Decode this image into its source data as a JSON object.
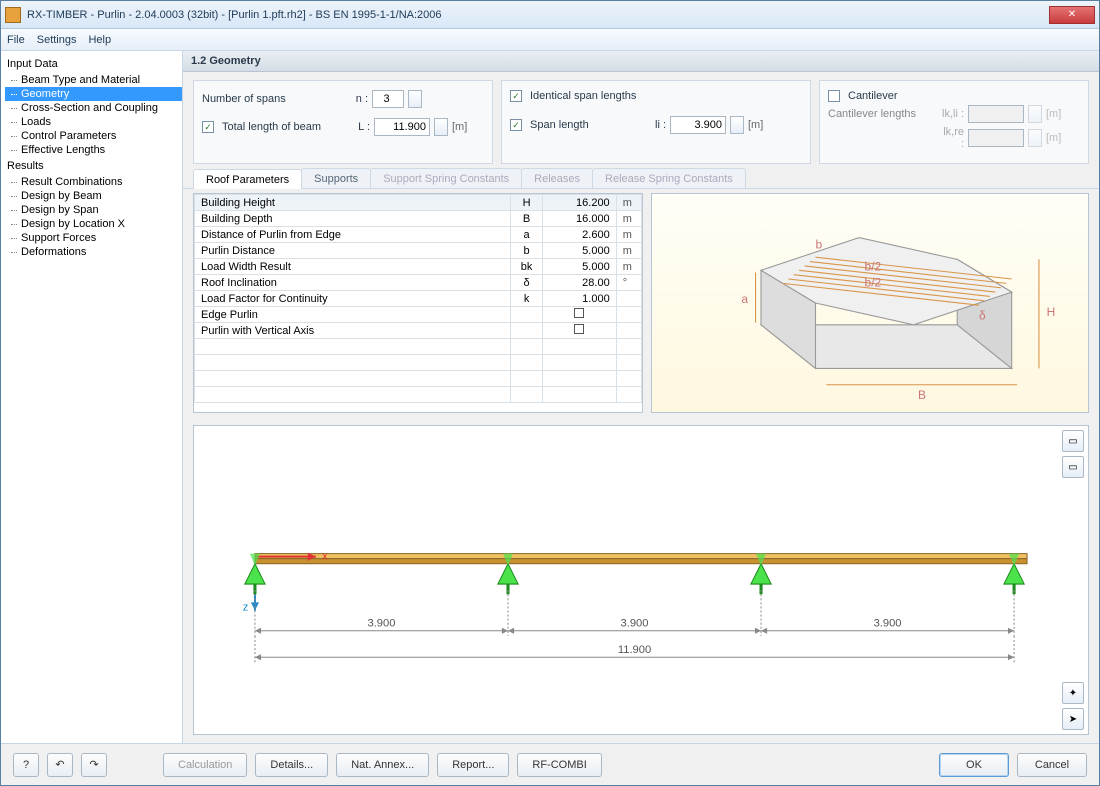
{
  "window": {
    "title": "RX-TIMBER - Purlin - 2.04.0003 (32bit) - [Purlin 1.pft.rh2] - BS EN 1995-1-1/NA:2006",
    "close_glyph": "✕"
  },
  "menu": {
    "file": "File",
    "settings": "Settings",
    "help": "Help"
  },
  "tree": {
    "input_header": "Input Data",
    "items_input": [
      "Beam Type and Material",
      "Geometry",
      "Cross-Section and Coupling",
      "Loads",
      "Control Parameters",
      "Effective Lengths"
    ],
    "selected_index": 1,
    "results_header": "Results",
    "items_results": [
      "Result Combinations",
      "Design by Beam",
      "Design by Span",
      "Design by Location X",
      "Support Forces",
      "Deformations"
    ]
  },
  "section_title": "1.2 Geometry",
  "spans": {
    "label": "Number of spans",
    "sym": "n :",
    "value": "3",
    "total_label": "Total length of beam",
    "total_sym": "L :",
    "total_value": "11.900",
    "unit_m": "[m]"
  },
  "span_panel": {
    "ident_label": "Identical span lengths",
    "len_label": "Span length",
    "len_sym": "li :",
    "len_value": "3.900",
    "unit_m": "[m]"
  },
  "cantilever": {
    "label": "Cantilever",
    "lengths_label": "Cantilever lengths",
    "sym1": "lk,li :",
    "sym2": "lk,re :",
    "unit_m": "[m]"
  },
  "tabs": {
    "items": [
      "Roof Parameters",
      "Supports",
      "Support Spring Constants",
      "Releases",
      "Release Spring Constants"
    ],
    "active": 0
  },
  "roof_params": {
    "rows": [
      {
        "label": "Building Height",
        "sym": "H",
        "val": "16.200",
        "unit": "m"
      },
      {
        "label": "Building Depth",
        "sym": "B",
        "val": "16.000",
        "unit": "m"
      },
      {
        "label": "Distance of Purlin from Edge",
        "sym": "a",
        "val": "2.600",
        "unit": "m"
      },
      {
        "label": "Purlin Distance",
        "sym": "b",
        "val": "5.000",
        "unit": "m"
      },
      {
        "label": "Load Width Result",
        "sym": "bk",
        "val": "5.000",
        "unit": "m"
      },
      {
        "label": "Roof Inclination",
        "sym": "δ",
        "val": "28.00",
        "unit": "°"
      },
      {
        "label": "Load Factor for Continuity",
        "sym": "k",
        "val": "1.000",
        "unit": ""
      },
      {
        "label": "Edge Purlin",
        "sym": "",
        "val": "",
        "unit": "",
        "check": true
      },
      {
        "label": "Purlin with Vertical Axis",
        "sym": "",
        "val": "",
        "unit": "",
        "check": true
      }
    ],
    "empty_rows": 4
  },
  "iso_labels": {
    "a": "a",
    "b": "b",
    "b2a": "b/2",
    "b2b": "b/2",
    "delta": "δ",
    "H": "H",
    "B": "B"
  },
  "beam": {
    "spans": [
      3.9,
      3.9,
      3.9
    ],
    "total": 11.9,
    "span_labels": [
      "3.900",
      "3.900",
      "3.900"
    ],
    "total_label": "11.900",
    "axis_x": "x",
    "axis_z": "z",
    "colors": {
      "beam_top": "#f0c060",
      "beam_bot": "#c99030",
      "support": "#4be24b",
      "axis_x_c": "#d33",
      "axis_z_c": "#28c",
      "dim": "#888"
    }
  },
  "bottom": {
    "calculation": "Calculation",
    "details": "Details...",
    "nat": "Nat. Annex...",
    "report": "Report...",
    "rfcombi": "RF-COMBI",
    "ok": "OK",
    "cancel": "Cancel"
  }
}
